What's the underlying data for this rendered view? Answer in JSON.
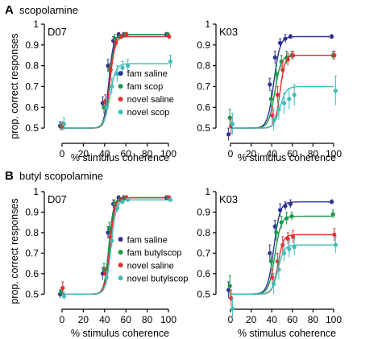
{
  "sections": [
    {
      "letter": "A",
      "title": "scopolamine"
    },
    {
      "letter": "B",
      "title": "butyl scopolamine"
    }
  ],
  "ylabel": "prop. correct responses",
  "chart_data": [
    {
      "type": "scatter",
      "panel": "D07",
      "section": "A",
      "xlabel": "% stimulus coherence",
      "ylabel": "prop. correct responses",
      "xticks": [
        0,
        20,
        40,
        60,
        80,
        100
      ],
      "yticks": [
        0.5,
        0.6,
        0.7,
        0.8,
        0.9
      ],
      "ylim": [
        0.45,
        1.0
      ],
      "ytop_label": "1",
      "grid": false,
      "legend": "right",
      "x": [
        0,
        40,
        45,
        50,
        55,
        60,
        100
      ],
      "series": [
        {
          "name": "fam saline",
          "color": "#2e3192",
          "y": [
            0.51,
            0.62,
            0.8,
            0.92,
            0.95,
            0.95,
            0.95
          ],
          "err": [
            0.02,
            0.03,
            0.03,
            0.02,
            0.01,
            0.01,
            0.01
          ],
          "fit": {
            "lo": 0.5,
            "hi": 0.95,
            "x50": 44,
            "slope": 2.2
          }
        },
        {
          "name": "fam scop",
          "color": "#1a9a4a",
          "y": [
            0.51,
            0.6,
            0.78,
            0.93,
            0.94,
            0.95,
            0.95
          ],
          "err": [
            0.02,
            0.03,
            0.03,
            0.02,
            0.01,
            0.01,
            0.01
          ],
          "fit": {
            "lo": 0.5,
            "hi": 0.95,
            "x50": 45,
            "slope": 2.2
          }
        },
        {
          "name": "novel saline",
          "color": "#e03030",
          "y": [
            0.51,
            0.63,
            0.78,
            0.91,
            0.94,
            0.95,
            0.94
          ],
          "err": [
            0.02,
            0.03,
            0.03,
            0.02,
            0.01,
            0.01,
            0.01
          ],
          "fit": {
            "lo": 0.5,
            "hi": 0.94,
            "x50": 45,
            "slope": 2.4
          }
        },
        {
          "name": "novel scop",
          "color": "#3fbdb8",
          "y": [
            0.52,
            0.6,
            0.7,
            0.76,
            0.79,
            0.8,
            0.82
          ],
          "err": [
            0.03,
            0.04,
            0.04,
            0.04,
            0.03,
            0.03,
            0.03
          ],
          "fit": {
            "lo": 0.5,
            "hi": 0.81,
            "x50": 45,
            "slope": 2.8
          }
        }
      ]
    },
    {
      "type": "scatter",
      "panel": "K03",
      "section": "A",
      "xlabel": "% stimulus coherence",
      "ylabel": "",
      "xticks": [
        0,
        20,
        40,
        60,
        80,
        100
      ],
      "yticks": [
        0.5,
        0.6,
        0.7,
        0.8,
        0.9
      ],
      "ylim": [
        0.45,
        1.0
      ],
      "ytop_label": "1",
      "grid": false,
      "x": [
        0,
        40,
        45,
        50,
        55,
        60,
        100
      ],
      "series": [
        {
          "name": "fam saline",
          "color": "#2e3192",
          "y": [
            0.47,
            0.71,
            0.84,
            0.91,
            0.93,
            0.94,
            0.94
          ],
          "err": [
            0.03,
            0.03,
            0.03,
            0.02,
            0.02,
            0.01,
            0.01
          ],
          "fit": {
            "lo": 0.5,
            "hi": 0.94,
            "x50": 42,
            "slope": 3.0
          }
        },
        {
          "name": "fam scop",
          "color": "#1a9a4a",
          "y": [
            0.55,
            0.64,
            0.76,
            0.82,
            0.84,
            0.85,
            0.85
          ],
          "err": [
            0.04,
            0.04,
            0.04,
            0.03,
            0.03,
            0.02,
            0.02
          ],
          "fit": {
            "lo": 0.5,
            "hi": 0.85,
            "x50": 43,
            "slope": 3.0
          }
        },
        {
          "name": "novel saline",
          "color": "#e03030",
          "y": [
            0.51,
            0.56,
            0.66,
            0.78,
            0.83,
            0.85,
            0.85
          ],
          "err": [
            0.04,
            0.04,
            0.04,
            0.04,
            0.03,
            0.02,
            0.02
          ],
          "fit": {
            "lo": 0.5,
            "hi": 0.85,
            "x50": 48,
            "slope": 2.4
          }
        },
        {
          "name": "novel scop",
          "color": "#3fbdb8",
          "y": [
            0.52,
            0.54,
            0.59,
            0.62,
            0.64,
            0.66,
            0.68
          ],
          "err": [
            0.05,
            0.05,
            0.05,
            0.05,
            0.05,
            0.05,
            0.07
          ],
          "fit": {
            "lo": 0.5,
            "hi": 0.7,
            "x50": 48,
            "slope": 3.0
          }
        }
      ]
    },
    {
      "type": "scatter",
      "panel": "D07",
      "section": "B",
      "xlabel": "% stimulus coherence",
      "ylabel": "prop. correct responses",
      "xticks": [
        0,
        20,
        40,
        60,
        80,
        100
      ],
      "yticks": [
        0.5,
        0.6,
        0.7,
        0.8,
        0.9
      ],
      "ylim": [
        0.45,
        1.0
      ],
      "ytop_label": "1",
      "grid": false,
      "legend": "right",
      "x": [
        0,
        40,
        45,
        50,
        55,
        60,
        100
      ],
      "series": [
        {
          "name": "fam saline",
          "color": "#2e3192",
          "y": [
            0.5,
            0.6,
            0.8,
            0.94,
            0.97,
            0.97,
            0.97
          ],
          "err": [
            0.02,
            0.03,
            0.03,
            0.02,
            0.01,
            0.01,
            0.01
          ],
          "fit": {
            "lo": 0.5,
            "hi": 0.97,
            "x50": 45,
            "slope": 2.2
          }
        },
        {
          "name": "fam butylscop",
          "color": "#1a9a4a",
          "y": [
            0.51,
            0.62,
            0.82,
            0.94,
            0.96,
            0.97,
            0.97
          ],
          "err": [
            0.02,
            0.03,
            0.03,
            0.02,
            0.01,
            0.01,
            0.01
          ],
          "fit": {
            "lo": 0.5,
            "hi": 0.97,
            "x50": 44,
            "slope": 2.2
          }
        },
        {
          "name": "novel saline",
          "color": "#e03030",
          "y": [
            0.53,
            0.6,
            0.78,
            0.93,
            0.96,
            0.97,
            0.97
          ],
          "err": [
            0.03,
            0.03,
            0.03,
            0.02,
            0.01,
            0.01,
            0.01
          ],
          "fit": {
            "lo": 0.5,
            "hi": 0.97,
            "x50": 45,
            "slope": 2.4
          }
        },
        {
          "name": "novel butylscop",
          "color": "#3fbdb8",
          "y": [
            0.49,
            0.58,
            0.76,
            0.92,
            0.95,
            0.96,
            0.96
          ],
          "err": [
            0.02,
            0.03,
            0.03,
            0.02,
            0.01,
            0.01,
            0.01
          ],
          "fit": {
            "lo": 0.5,
            "hi": 0.96,
            "x50": 46,
            "slope": 2.4
          }
        }
      ]
    },
    {
      "type": "scatter",
      "panel": "K03",
      "section": "B",
      "xlabel": "% stimulus coherence",
      "ylabel": "",
      "xticks": [
        0,
        20,
        40,
        60,
        80,
        100
      ],
      "yticks": [
        0.5,
        0.6,
        0.7,
        0.8,
        0.9
      ],
      "ylim": [
        0.45,
        1.0
      ],
      "ytop_label": "1",
      "grid": false,
      "x": [
        0,
        40,
        45,
        50,
        55,
        60,
        100
      ],
      "series": [
        {
          "name": "fam saline",
          "color": "#2e3192",
          "y": [
            0.52,
            0.7,
            0.83,
            0.91,
            0.93,
            0.94,
            0.95
          ],
          "err": [
            0.04,
            0.04,
            0.03,
            0.03,
            0.02,
            0.02,
            0.01
          ],
          "fit": {
            "lo": 0.5,
            "hi": 0.95,
            "x50": 42,
            "slope": 3.0
          }
        },
        {
          "name": "fam butylscop",
          "color": "#1a9a4a",
          "y": [
            0.54,
            0.66,
            0.8,
            0.85,
            0.87,
            0.88,
            0.89
          ],
          "err": [
            0.05,
            0.04,
            0.04,
            0.03,
            0.03,
            0.02,
            0.02
          ],
          "fit": {
            "lo": 0.5,
            "hi": 0.88,
            "x50": 43,
            "slope": 3.0
          }
        },
        {
          "name": "novel saline",
          "color": "#e03030",
          "y": [
            0.48,
            0.58,
            0.66,
            0.74,
            0.77,
            0.78,
            0.79
          ],
          "err": [
            0.04,
            0.04,
            0.04,
            0.04,
            0.03,
            0.03,
            0.03
          ],
          "fit": {
            "lo": 0.5,
            "hi": 0.79,
            "x50": 46,
            "slope": 2.6
          }
        },
        {
          "name": "novel butylscop",
          "color": "#3fbdb8",
          "y": [
            0.43,
            0.55,
            0.62,
            0.7,
            0.72,
            0.73,
            0.74
          ],
          "err": [
            0.05,
            0.05,
            0.05,
            0.04,
            0.04,
            0.04,
            0.04
          ],
          "fit": {
            "lo": 0.5,
            "hi": 0.74,
            "x50": 46,
            "slope": 3.0
          }
        }
      ]
    }
  ]
}
